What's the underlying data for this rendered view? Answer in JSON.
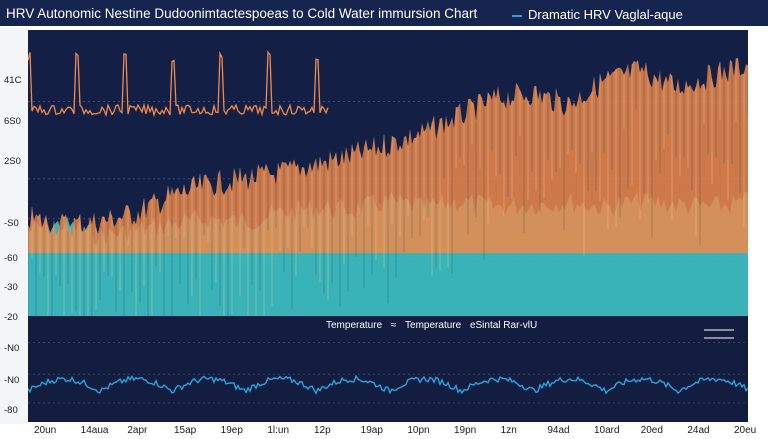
{
  "title": "HRV Autonomic Nestine Dudoonimtactespoeas to Cold Water immursion Chart",
  "legend_top": "Dramatic HRV  Vaglal-aque",
  "colors": {
    "background": "#131f45",
    "orange": "#f08a4b",
    "teal": "#3ec3c3",
    "blue": "#2aa3e0",
    "white": "#ffffff"
  },
  "chart_data": [
    {
      "type": "area",
      "title": "HRV Autonomic Nestine Dudoonimtactespoeas to Cold Water immursion Chart",
      "yticks": [
        "41C",
        "6S0",
        "2S0",
        "-S0",
        "-60",
        "-30",
        "-20"
      ],
      "series": [
        {
          "name": "Dramatic HRV  Vaglal-aque",
          "color": "#f08a4b",
          "x": [
            0,
            5,
            10,
            15,
            20,
            25,
            30,
            35,
            40,
            45,
            50,
            55,
            60,
            65,
            70,
            75,
            80,
            85,
            90,
            95,
            100
          ],
          "values": [
            0.66,
            0.68,
            0.67,
            0.64,
            0.58,
            0.54,
            0.52,
            0.5,
            0.47,
            0.44,
            0.4,
            0.36,
            0.3,
            0.24,
            0.22,
            0.26,
            0.18,
            0.14,
            0.2,
            0.16,
            0.12
          ]
        },
        {
          "name": "Temperature",
          "color": "#3ec3c3",
          "x": [
            0,
            5,
            10,
            15,
            20,
            25,
            30,
            35,
            40,
            45,
            50,
            55,
            60,
            65,
            70,
            75,
            80,
            85,
            90,
            95,
            100
          ],
          "values": [
            0.7,
            0.68,
            0.72,
            0.7,
            0.68,
            0.66,
            0.67,
            0.64,
            0.62,
            0.63,
            0.6,
            0.62,
            0.6,
            0.62,
            0.61,
            0.6,
            0.62,
            0.6,
            0.61,
            0.62,
            0.6
          ]
        }
      ]
    },
    {
      "type": "line",
      "yticks": [
        "-N0",
        "-N0",
        "-80"
      ],
      "xticks": [
        "20un",
        "14aua",
        "2apr",
        "15ap",
        "19ep",
        "1l:un",
        "12p",
        "19ap",
        "10pn",
        "19pn",
        "1zn",
        "94ad",
        "10ard",
        "20ed",
        "24ad",
        "20eu"
      ],
      "legend": [
        "Temperature",
        "Temperature",
        "eSintal Rar-vlU"
      ],
      "series": [
        {
          "name": "eSintal Rar-vlU",
          "color": "#2aa3e0"
        }
      ]
    }
  ]
}
